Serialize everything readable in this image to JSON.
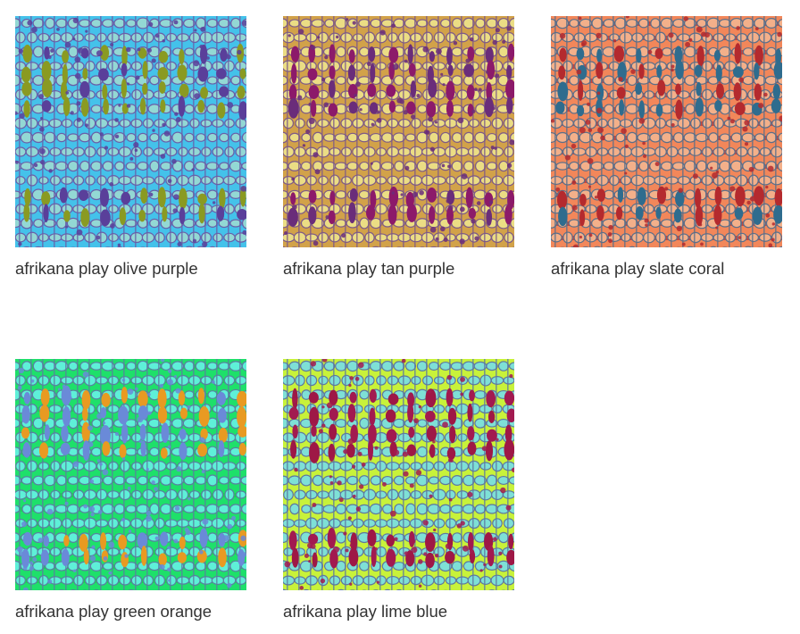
{
  "gallery": {
    "items": [
      {
        "title": "afrikana play olive purple",
        "palette": {
          "bg": "#44c2ea",
          "band": "#3aa6e6",
          "light": "#93d8d4",
          "accent": "#8a9a22",
          "dark": "#5a3f9a",
          "line": "#6a5fa8"
        }
      },
      {
        "title": "afrikana play tan purple",
        "palette": {
          "bg": "#d2a249",
          "band": "#c89440",
          "light": "#ebdd84",
          "accent": "#8c1a6a",
          "dark": "#6a2d7a",
          "line": "#7d5a88"
        }
      },
      {
        "title": "afrikana play slate coral",
        "palette": {
          "bg": "#f2875a",
          "band": "#c23a36",
          "light": "#f3b08a",
          "accent": "#2f6c8e",
          "dark": "#b42a2e",
          "line": "#5a6f8a"
        }
      },
      {
        "title": "afrikana play green orange",
        "palette": {
          "bg": "#1ee06a",
          "band": "#19d44a",
          "light": "#5ef0d8",
          "accent": "#e89a22",
          "dark": "#6a8ad8",
          "line": "#5a7fa0"
        }
      },
      {
        "title": "afrikana play lime blue",
        "palette": {
          "bg": "#c8f23a",
          "band": "#f0f420",
          "light": "#7ee0d6",
          "accent": "#9e1846",
          "dark": "#a21a50",
          "line": "#5e78a0"
        }
      }
    ]
  }
}
